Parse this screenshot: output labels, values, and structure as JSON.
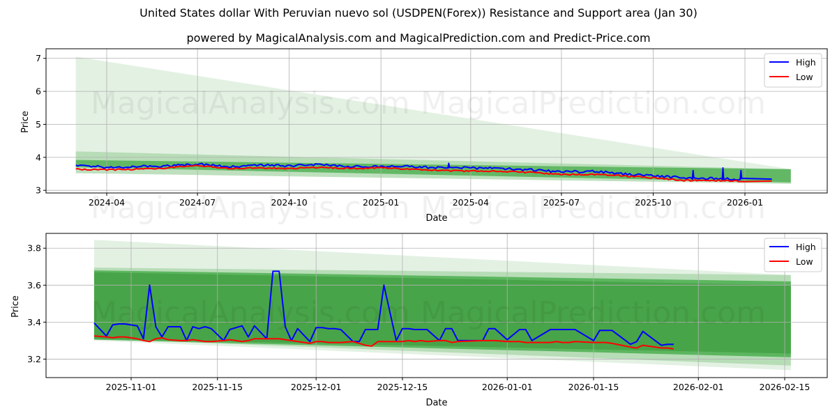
{
  "header": {
    "title": "United States dollar With Peruvian nuevo sol (USDPEN(Forex)) Resistance and Support area (Jan 30)",
    "subtitle": "powered by MagicalAnalysis.com and MagicalPrediction.com and Predict-Price.com"
  },
  "watermarks": [
    "MagicalAnalysis.com",
    "MagicalPrediction.com"
  ],
  "colors": {
    "high": "#0000ff",
    "low": "#ff0000",
    "band_light": "#e3f1e3",
    "band_mid": "#a8d5a8",
    "band_dark": "#4caf50",
    "grid": "#b0b0b0"
  },
  "legend": {
    "high_label": "High",
    "low_label": "Low"
  },
  "chart_data": [
    {
      "type": "line",
      "title": "",
      "xlabel": "Date",
      "ylabel": "Price",
      "ylim": [
        2.92,
        7.29
      ],
      "yticks": [
        "3",
        "4",
        "5",
        "6",
        "7"
      ],
      "xticks": [
        "2024-04",
        "2024-07",
        "2024-10",
        "2025-01",
        "2025-04",
        "2025-07",
        "2025-10",
        "2026-01"
      ],
      "grid": true,
      "legend_position": "upper right",
      "x_start": "2024-03-01",
      "x_end": "2026-02-16",
      "series": [
        {
          "name": "High",
          "x": [
            "2024-03",
            "2024-04",
            "2024-05",
            "2024-06",
            "2024-07",
            "2024-08",
            "2024-09",
            "2024-10",
            "2024-11",
            "2024-12",
            "2025-01",
            "2025-02",
            "2025-03",
            "2025-04",
            "2025-05",
            "2025-06",
            "2025-07",
            "2025-08",
            "2025-09",
            "2025-10",
            "2025-11",
            "2025-12",
            "2026-01"
          ],
          "values": [
            3.76,
            3.7,
            3.72,
            3.74,
            3.8,
            3.72,
            3.76,
            3.74,
            3.78,
            3.72,
            3.72,
            3.72,
            3.68,
            3.68,
            3.66,
            3.62,
            3.56,
            3.58,
            3.5,
            3.44,
            3.38,
            3.36,
            3.34
          ]
        },
        {
          "name": "Low",
          "x": [
            "2024-03",
            "2024-04",
            "2024-05",
            "2024-06",
            "2024-07",
            "2024-08",
            "2024-09",
            "2024-10",
            "2024-11",
            "2024-12",
            "2025-01",
            "2025-02",
            "2025-03",
            "2025-04",
            "2025-05",
            "2025-06",
            "2025-07",
            "2025-08",
            "2025-09",
            "2025-10",
            "2025-11",
            "2025-12",
            "2026-01"
          ],
          "values": [
            3.64,
            3.62,
            3.64,
            3.68,
            3.76,
            3.66,
            3.68,
            3.66,
            3.7,
            3.66,
            3.68,
            3.64,
            3.6,
            3.58,
            3.58,
            3.54,
            3.48,
            3.48,
            3.44,
            3.38,
            3.3,
            3.3,
            3.28
          ]
        }
      ],
      "bands": [
        {
          "name": "outer-light",
          "start": "2024-03-01",
          "end": "2026-02-16",
          "upper": [
            7.05,
            3.64
          ],
          "lower": [
            3.84,
            3.2
          ]
        },
        {
          "name": "resistance-support",
          "start": "2024-03-01",
          "end": "2026-02-16",
          "upper": [
            4.18,
            3.64
          ],
          "lower": [
            3.52,
            3.2
          ]
        }
      ]
    },
    {
      "type": "line",
      "title": "",
      "xlabel": "Date",
      "ylabel": "Price",
      "ylim": [
        3.1,
        3.88
      ],
      "yticks": [
        "3.2",
        "3.4",
        "3.6",
        "3.8"
      ],
      "xticks": [
        "2025-11-01",
        "2025-11-15",
        "2025-12-01",
        "2025-12-15",
        "2026-01-01",
        "2026-01-15",
        "2026-02-01",
        "2026-02-15"
      ],
      "grid": true,
      "legend_position": "upper right",
      "series": [
        {
          "name": "High",
          "x": [
            "2025-10-26",
            "2025-10-28",
            "2025-10-29",
            "2025-10-30",
            "2025-10-31",
            "2025-11-02",
            "2025-11-03",
            "2025-11-04",
            "2025-11-05",
            "2025-11-06",
            "2025-11-07",
            "2025-11-09",
            "2025-11-10",
            "2025-11-11",
            "2025-11-12",
            "2025-11-13",
            "2025-11-14",
            "2025-11-16",
            "2025-11-17",
            "2025-11-18",
            "2025-11-19",
            "2025-11-20",
            "2025-11-21",
            "2025-11-23",
            "2025-11-24",
            "2025-11-25",
            "2025-11-26",
            "2025-11-27",
            "2025-11-28",
            "2025-11-30",
            "2025-12-01",
            "2025-12-02",
            "2025-12-03",
            "2025-12-04",
            "2025-12-05",
            "2025-12-07",
            "2025-12-08",
            "2025-12-09",
            "2025-12-10",
            "2025-12-11",
            "2025-12-12",
            "2025-12-14",
            "2025-12-15",
            "2025-12-16",
            "2025-12-17",
            "2025-12-18",
            "2025-12-19",
            "2025-12-21",
            "2025-12-22",
            "2025-12-23",
            "2025-12-24",
            "2025-12-28",
            "2025-12-29",
            "2025-12-30",
            "2026-01-01",
            "2026-01-03",
            "2026-01-04",
            "2026-01-05",
            "2026-01-08",
            "2026-01-09",
            "2026-01-10",
            "2026-01-11",
            "2026-01-12",
            "2026-01-15",
            "2026-01-16",
            "2026-01-17",
            "2026-01-18",
            "2026-01-21",
            "2026-01-22",
            "2026-01-23",
            "2026-01-26",
            "2026-01-27",
            "2026-01-28"
          ],
          "values": [
            3.395,
            3.325,
            3.385,
            3.39,
            3.39,
            3.38,
            3.31,
            3.6,
            3.375,
            3.32,
            3.375,
            3.375,
            3.3,
            3.375,
            3.365,
            3.375,
            3.365,
            3.3,
            3.36,
            3.37,
            3.38,
            3.32,
            3.38,
            3.31,
            3.675,
            3.675,
            3.375,
            3.3,
            3.365,
            3.295,
            3.37,
            3.37,
            3.365,
            3.365,
            3.36,
            3.295,
            3.295,
            3.36,
            3.36,
            3.36,
            3.6,
            3.3,
            3.365,
            3.365,
            3.36,
            3.36,
            3.36,
            3.3,
            3.365,
            3.365,
            3.3,
            3.3,
            3.365,
            3.365,
            3.305,
            3.36,
            3.36,
            3.3,
            3.36,
            3.36,
            3.36,
            3.36,
            3.36,
            3.3,
            3.355,
            3.355,
            3.355,
            3.28,
            3.295,
            3.35,
            3.275,
            3.28,
            3.28
          ]
        },
        {
          "name": "Low",
          "x": [
            "2025-10-26",
            "2025-10-28",
            "2025-10-29",
            "2025-10-30",
            "2025-10-31",
            "2025-11-02",
            "2025-11-03",
            "2025-11-04",
            "2025-11-05",
            "2025-11-06",
            "2025-11-07",
            "2025-11-09",
            "2025-11-10",
            "2025-11-11",
            "2025-11-12",
            "2025-11-13",
            "2025-11-14",
            "2025-11-16",
            "2025-11-17",
            "2025-11-18",
            "2025-11-19",
            "2025-11-20",
            "2025-11-21",
            "2025-11-23",
            "2025-11-24",
            "2025-11-25",
            "2025-11-26",
            "2025-11-27",
            "2025-11-28",
            "2025-11-30",
            "2025-12-01",
            "2025-12-02",
            "2025-12-03",
            "2025-12-04",
            "2025-12-05",
            "2025-12-07",
            "2025-12-08",
            "2025-12-09",
            "2025-12-10",
            "2025-12-11",
            "2025-12-12",
            "2025-12-14",
            "2025-12-15",
            "2025-12-16",
            "2025-12-17",
            "2025-12-18",
            "2025-12-19",
            "2025-12-21",
            "2025-12-22",
            "2025-12-23",
            "2025-12-24",
            "2025-12-28",
            "2025-12-29",
            "2025-12-30",
            "2026-01-01",
            "2026-01-03",
            "2026-01-04",
            "2026-01-05",
            "2026-01-08",
            "2026-01-09",
            "2026-01-10",
            "2026-01-11",
            "2026-01-12",
            "2026-01-15",
            "2026-01-16",
            "2026-01-17",
            "2026-01-18",
            "2026-01-21",
            "2026-01-22",
            "2026-01-23",
            "2026-01-26",
            "2026-01-27",
            "2026-01-28"
          ],
          "values": [
            3.325,
            3.32,
            3.315,
            3.32,
            3.32,
            3.31,
            3.3,
            3.295,
            3.31,
            3.315,
            3.305,
            3.3,
            3.3,
            3.305,
            3.3,
            3.295,
            3.295,
            3.3,
            3.305,
            3.3,
            3.295,
            3.3,
            3.31,
            3.31,
            3.31,
            3.31,
            3.305,
            3.3,
            3.295,
            3.285,
            3.295,
            3.295,
            3.29,
            3.29,
            3.29,
            3.295,
            3.285,
            3.275,
            3.27,
            3.295,
            3.295,
            3.295,
            3.295,
            3.3,
            3.295,
            3.3,
            3.295,
            3.3,
            3.3,
            3.29,
            3.295,
            3.3,
            3.3,
            3.3,
            3.295,
            3.295,
            3.29,
            3.29,
            3.29,
            3.295,
            3.29,
            3.29,
            3.295,
            3.29,
            3.29,
            3.29,
            3.285,
            3.265,
            3.26,
            3.275,
            3.26,
            3.26,
            3.255
          ]
        }
      ],
      "bands": [
        {
          "name": "outer-light",
          "start": "2025-10-26",
          "end": "2026-02-16",
          "upper": [
            3.845,
            3.655
          ],
          "lower": [
            3.3,
            3.14
          ]
        },
        {
          "name": "resistance",
          "start": "2025-10-26",
          "end": "2026-02-16",
          "upper": [
            3.695,
            3.655
          ],
          "lower": [
            3.31,
            3.165
          ]
        },
        {
          "name": "support-inner",
          "start": "2025-10-26",
          "end": "2026-02-16",
          "upper": [
            3.68,
            3.62
          ],
          "lower": [
            3.305,
            3.21
          ]
        }
      ]
    }
  ]
}
